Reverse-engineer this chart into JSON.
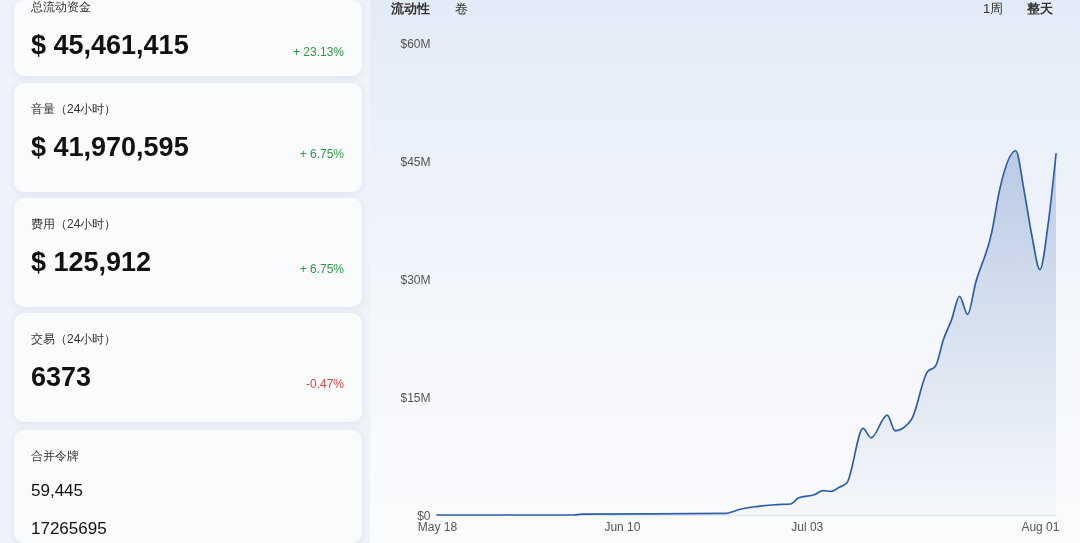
{
  "chart_data": [
    {
      "type": "other",
      "title": "总流动资金",
      "annotations": [
        "$ 45,461,415",
        "+ 23.13%"
      ],
      "colors": [
        "#111111",
        "#2f9a45"
      ]
    },
    {
      "type": "other",
      "title": "音量（24小时）",
      "annotations": [
        "$ 41,970,595",
        "+ 6.75%"
      ],
      "colors": [
        "#111111",
        "#2f9a45"
      ]
    },
    {
      "type": "other",
      "title": "费用（24小时）",
      "annotations": [
        "$ 125,912",
        "+ 6.75%"
      ],
      "colors": [
        "#111111",
        "#2f9a45"
      ]
    },
    {
      "type": "other",
      "title": "交易（24小时）",
      "annotations": [
        "6373",
        "-0.47%"
      ],
      "colors": [
        "#111111",
        "#e0443f"
      ]
    },
    {
      "type": "other",
      "title": "合并令牌",
      "annotations": [
        "59,445",
        "17265695"
      ],
      "colors": [
        "#111111",
        "#111111"
      ]
    },
    {
      "type": "area",
      "annotations": [
        "流动性",
        "卷",
        "1周",
        "整天"
      ],
      "x": [
        "--05-18",
        "--06-04",
        "--06-05",
        "--06-23",
        "--06-24",
        "--06-25",
        "--06-27",
        "--06-29",
        "--07-01",
        "--07-02",
        "--07-04",
        "--07-05",
        "--07-06",
        "--07-07",
        "--07-08",
        "--07-10",
        "--07-11",
        "--07-13",
        "--07-14",
        "--07-16",
        "--07-18",
        "--07-19",
        "--07-20",
        "--07-21",
        "--07-22",
        "--07-23",
        "--07-24",
        "--07-26",
        "--07-27",
        "--07-29",
        "--07-30",
        "--07-31",
        "--08-01",
        "--08-02",
        "--08-03"
      ],
      "series": [
        {
          "color": "#2f5ea8",
          "values": [
            0,
            0,
            0.1,
            0.2,
            0.5,
            0.8,
            1.1,
            1.3,
            1.4,
            2.2,
            2.6,
            3.1,
            3.0,
            3.5,
            4.1,
            11.0,
            9.8,
            12.7,
            10.7,
            12.1,
            18.2,
            18.9,
            22.3,
            24.8,
            27.8,
            25.5,
            29.5,
            35.9,
            41.4,
            46.3,
            41.4,
            35.5,
            31.2,
            36.8,
            45.9
          ]
        }
      ],
      "xlim": [
        "--05-18",
        "--08-03"
      ],
      "xticks": [
        {
          "value": "--05-18",
          "label": "May 18"
        },
        {
          "value": "--06-10",
          "label": "Jun 10"
        },
        {
          "value": "--07-03",
          "label": "Jul 03"
        },
        {
          "value": "--08-01",
          "label": "Aug 01"
        }
      ],
      "ylim": [
        0,
        60
      ],
      "yticks": [
        {
          "value": 0,
          "label": "$0"
        },
        {
          "value": 15,
          "label": "$15M"
        },
        {
          "value": 30,
          "label": "$30M"
        },
        {
          "value": 45,
          "label": "$45M"
        },
        {
          "value": 60,
          "label": "$60M"
        }
      ]
    }
  ]
}
